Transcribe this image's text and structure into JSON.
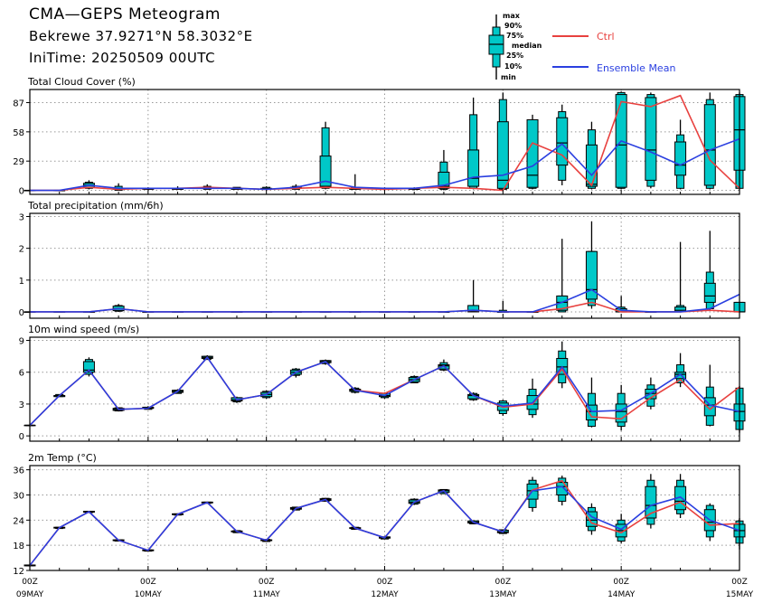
{
  "header": {
    "title": "CMA—GEPS Meteogram",
    "location": "Bekrewe 37.9271°N 58.3032°E",
    "init_time": "IniTime: 20250509 00UTC"
  },
  "legend": {
    "box_labels": [
      "max",
      "90%",
      "75%",
      "median",
      "25%",
      "10%",
      "min"
    ],
    "ctrl_label": "Ctrl",
    "mean_label": "Ensemble Mean",
    "colors": {
      "ctrl": "#e8413f",
      "mean": "#2a3fe0",
      "box": "#00c8c8"
    }
  },
  "x_axis": {
    "tick_labels": [
      {
        "hour": "00Z",
        "date": "09MAY"
      },
      {
        "hour": "00Z",
        "date": "10MAY"
      },
      {
        "hour": "00Z",
        "date": "11MAY"
      },
      {
        "hour": "00Z",
        "date": "12MAY"
      },
      {
        "hour": "00Z",
        "date": "13MAY"
      },
      {
        "hour": "00Z",
        "date": "14MAY"
      },
      {
        "hour": "00Z",
        "date": "15MAY"
      }
    ]
  },
  "chart_data": [
    {
      "type": "box",
      "title": "Total Cloud Cover (%)",
      "ylim": [
        -4,
        100
      ],
      "yticks": [
        0,
        29,
        58,
        87
      ],
      "x_hours": [
        0,
        6,
        12,
        18,
        24,
        30,
        36,
        42,
        48,
        54,
        60,
        66,
        72,
        78,
        84,
        90,
        96,
        102,
        108,
        114,
        120,
        126,
        132,
        138,
        144
      ],
      "ctrl": [
        0,
        0,
        3,
        1,
        2,
        2,
        3,
        2,
        1,
        2,
        3,
        2,
        1,
        2,
        3,
        2,
        0,
        47,
        35,
        5,
        88,
        83,
        94,
        30,
        2
      ],
      "mean": [
        0,
        0,
        5,
        2,
        2,
        2,
        2,
        2,
        1,
        3,
        9,
        3,
        2,
        2,
        5,
        13,
        15,
        24,
        46,
        15,
        49,
        38,
        25,
        40,
        51
      ],
      "boxes": [
        [
          0,
          0,
          0,
          0,
          0,
          0,
          0
        ],
        [
          0,
          0,
          0,
          0,
          0,
          0,
          0
        ],
        [
          1,
          2,
          3,
          5,
          7,
          8,
          10
        ],
        [
          0,
          0,
          1,
          2,
          2,
          4,
          7
        ],
        [
          1,
          1,
          1,
          2,
          2,
          2,
          3
        ],
        [
          1,
          1,
          1,
          2,
          2,
          2,
          4
        ],
        [
          1,
          1,
          2,
          2,
          3,
          4,
          6
        ],
        [
          1,
          1,
          1,
          2,
          2,
          3,
          3
        ],
        [
          0,
          1,
          1,
          1,
          2,
          3,
          4
        ],
        [
          1,
          1,
          2,
          3,
          3,
          4,
          6
        ],
        [
          1,
          2,
          3,
          4,
          34,
          62,
          68
        ],
        [
          1,
          1,
          1,
          2,
          2,
          3,
          16
        ],
        [
          0,
          1,
          1,
          1,
          2,
          2,
          3
        ],
        [
          0,
          1,
          1,
          1,
          2,
          2,
          3
        ],
        [
          0,
          1,
          2,
          4,
          18,
          28,
          40
        ],
        [
          1,
          2,
          4,
          12,
          40,
          75,
          92
        ],
        [
          0,
          1,
          2,
          10,
          68,
          90,
          97
        ],
        [
          1,
          2,
          3,
          15,
          70,
          68,
          75
        ],
        [
          5,
          10,
          25,
          47,
          72,
          78,
          85
        ],
        [
          1,
          2,
          4,
          6,
          45,
          60,
          68
        ],
        [
          1,
          2,
          3,
          45,
          95,
          97,
          98
        ],
        [
          2,
          4,
          10,
          40,
          92,
          95,
          97
        ],
        [
          1,
          2,
          15,
          25,
          48,
          55,
          70
        ],
        [
          1,
          2,
          5,
          40,
          85,
          90,
          97
        ],
        [
          1,
          2,
          20,
          60,
          93,
          95,
          97
        ]
      ]
    },
    {
      "type": "box",
      "title": "Total precipitation (mm/6h)",
      "ylim": [
        -0.2,
        3.1
      ],
      "yticks": [
        0,
        1,
        2,
        3
      ],
      "x_hours": [
        0,
        6,
        12,
        18,
        24,
        30,
        36,
        42,
        48,
        54,
        60,
        66,
        72,
        78,
        84,
        90,
        96,
        102,
        108,
        114,
        120,
        126,
        132,
        138,
        144
      ],
      "ctrl": [
        0,
        0,
        0,
        0.1,
        0,
        0,
        0,
        0,
        0,
        0,
        0,
        0,
        0,
        0,
        0,
        0.05,
        0,
        0,
        0.1,
        0.3,
        0,
        0,
        0,
        0.05,
        0
      ],
      "mean": [
        0,
        0,
        0,
        0.1,
        0,
        0,
        0,
        0,
        0,
        0,
        0,
        0,
        0,
        0,
        0,
        0.05,
        0,
        0,
        0.3,
        0.7,
        0.05,
        0,
        0,
        0.1,
        0.55
      ],
      "boxes": [
        [
          0,
          0,
          0,
          0,
          0,
          0,
          0
        ],
        [
          0,
          0,
          0,
          0,
          0,
          0,
          0
        ],
        [
          0,
          0,
          0,
          0,
          0,
          0,
          0
        ],
        [
          0,
          0.02,
          0.04,
          0.1,
          0.18,
          0.2,
          0.25
        ],
        [
          0,
          0,
          0,
          0,
          0,
          0,
          0
        ],
        [
          0,
          0,
          0,
          0,
          0,
          0,
          0
        ],
        [
          0,
          0,
          0,
          0,
          0,
          0,
          0
        ],
        [
          0,
          0,
          0,
          0,
          0,
          0,
          0
        ],
        [
          0,
          0,
          0,
          0,
          0,
          0,
          0
        ],
        [
          0,
          0,
          0,
          0,
          0,
          0,
          0
        ],
        [
          0,
          0,
          0,
          0,
          0,
          0,
          0
        ],
        [
          0,
          0,
          0,
          0,
          0,
          0,
          0
        ],
        [
          0,
          0,
          0,
          0,
          0,
          0,
          0
        ],
        [
          0,
          0,
          0,
          0,
          0,
          0,
          0
        ],
        [
          0,
          0,
          0,
          0,
          0,
          0,
          0
        ],
        [
          0,
          0,
          0,
          0.01,
          0.2,
          0.2,
          1.0
        ],
        [
          0,
          0,
          0,
          0,
          0,
          0.05,
          0.35
        ],
        [
          0,
          0,
          0,
          0,
          0,
          0,
          0
        ],
        [
          0,
          0,
          0.05,
          0.3,
          0.5,
          0.5,
          2.3
        ],
        [
          0.1,
          0.2,
          0.4,
          0.7,
          1.9,
          1.9,
          2.85
        ],
        [
          0,
          0,
          0,
          0,
          0.1,
          0.15,
          0.5
        ],
        [
          0,
          0,
          0,
          0,
          0,
          0,
          0
        ],
        [
          0,
          0,
          0,
          0.05,
          0.15,
          0.2,
          2.2
        ],
        [
          0.05,
          0.1,
          0.3,
          0.5,
          0.9,
          1.25,
          2.55
        ],
        [
          0,
          0,
          0,
          0,
          0.3,
          0.3,
          0.3
        ]
      ]
    },
    {
      "type": "box",
      "title": "10m wind speed (m/s)",
      "ylim": [
        -0.5,
        9.3
      ],
      "yticks": [
        0,
        3,
        6,
        9
      ],
      "x_hours": [
        0,
        6,
        12,
        18,
        24,
        30,
        36,
        42,
        48,
        54,
        60,
        66,
        72,
        78,
        84,
        90,
        96,
        102,
        108,
        114,
        120,
        126,
        132,
        138,
        144
      ],
      "ctrl": [
        1.0,
        3.8,
        6.2,
        2.5,
        2.6,
        4.2,
        7.4,
        3.4,
        3.9,
        6.0,
        7.0,
        4.3,
        4.0,
        5.3,
        6.6,
        3.8,
        2.7,
        3.0,
        6.3,
        1.8,
        1.6,
        3.6,
        5.3,
        2.5,
        4.6
      ],
      "mean": [
        1.0,
        3.8,
        6.2,
        2.5,
        2.6,
        4.2,
        7.4,
        3.4,
        3.9,
        6.0,
        7.0,
        4.3,
        3.8,
        5.3,
        6.6,
        3.8,
        2.8,
        3.1,
        6.5,
        2.3,
        2.4,
        4.0,
        5.8,
        2.9,
        2.3
      ],
      "boxes": [
        [
          1.0,
          1.0,
          1.0,
          1.0,
          1.0,
          1.0,
          1.0
        ],
        [
          3.7,
          3.7,
          3.7,
          3.8,
          3.8,
          3.9,
          3.9
        ],
        [
          5.6,
          5.8,
          6.0,
          6.2,
          7.0,
          7.2,
          7.4
        ],
        [
          2.3,
          2.35,
          2.4,
          2.5,
          2.6,
          2.65,
          2.7
        ],
        [
          2.5,
          2.5,
          2.6,
          2.6,
          2.7,
          2.7,
          2.8
        ],
        [
          4.0,
          4.0,
          4.1,
          4.2,
          4.3,
          4.3,
          4.4
        ],
        [
          7.2,
          7.2,
          7.3,
          7.4,
          7.5,
          7.5,
          7.6
        ],
        [
          3.1,
          3.2,
          3.3,
          3.4,
          3.6,
          3.6,
          3.7
        ],
        [
          3.5,
          3.6,
          3.7,
          3.9,
          4.1,
          4.2,
          4.3
        ],
        [
          5.5,
          5.7,
          5.8,
          6.0,
          6.2,
          6.3,
          6.4
        ],
        [
          6.7,
          6.8,
          6.9,
          7.0,
          7.1,
          7.1,
          7.2
        ],
        [
          4.0,
          4.1,
          4.2,
          4.3,
          4.4,
          4.5,
          4.6
        ],
        [
          3.5,
          3.6,
          3.7,
          3.8,
          4.0,
          4.0,
          4.1
        ],
        [
          5.0,
          5.0,
          5.1,
          5.3,
          5.5,
          5.6,
          5.7
        ],
        [
          6.1,
          6.2,
          6.3,
          6.6,
          6.7,
          6.9,
          7.2
        ],
        [
          3.3,
          3.4,
          3.5,
          3.8,
          3.9,
          4.0,
          4.1
        ],
        [
          1.9,
          2.1,
          2.4,
          2.8,
          3.1,
          3.3,
          3.4
        ],
        [
          1.7,
          2.0,
          2.5,
          3.0,
          3.8,
          4.4,
          5.4
        ],
        [
          4.5,
          5.0,
          5.8,
          6.5,
          7.3,
          8.0,
          8.9
        ],
        [
          0.8,
          0.9,
          1.5,
          2.3,
          2.9,
          4.0,
          5.5
        ],
        [
          0.5,
          0.9,
          1.3,
          2.3,
          3.0,
          4.0,
          4.8
        ],
        [
          2.5,
          2.8,
          3.5,
          4.0,
          4.4,
          4.8,
          5.5
        ],
        [
          4.6,
          5.0,
          5.4,
          5.8,
          6.0,
          6.7,
          7.8
        ],
        [
          0.9,
          1.0,
          1.9,
          2.9,
          3.6,
          4.6,
          6.7
        ],
        [
          0.3,
          0.6,
          1.4,
          2.3,
          3.0,
          4.5,
          4.7
        ]
      ]
    },
    {
      "type": "box",
      "title": "2m Temp (°C)",
      "ylim": [
        12,
        37
      ],
      "yticks": [
        12,
        18,
        24,
        30,
        36
      ],
      "x_hours": [
        0,
        6,
        12,
        18,
        24,
        30,
        36,
        42,
        48,
        54,
        60,
        66,
        72,
        78,
        84,
        90,
        96,
        102,
        108,
        114,
        120,
        126,
        132,
        138,
        144
      ],
      "ctrl": [
        13.2,
        22.2,
        26.0,
        19.2,
        16.8,
        25.4,
        28.2,
        21.3,
        19.2,
        26.8,
        28.9,
        22.1,
        19.8,
        28.3,
        31.0,
        23.5,
        21.2,
        31.2,
        33.4,
        23.3,
        21.0,
        25.6,
        28.3,
        22.8,
        23.2
      ],
      "mean": [
        13.2,
        22.2,
        26.0,
        19.2,
        16.8,
        25.4,
        28.2,
        21.3,
        19.2,
        26.8,
        28.9,
        22.1,
        19.8,
        28.3,
        31.0,
        23.5,
        21.2,
        31.0,
        32.0,
        24.8,
        21.8,
        27.5,
        29.5,
        24.0,
        21.5
      ],
      "boxes": [
        [
          13.0,
          13.1,
          13.1,
          13.2,
          13.3,
          13.3,
          13.4
        ],
        [
          22.0,
          22.0,
          22.1,
          22.2,
          22.3,
          22.3,
          22.4
        ],
        [
          25.8,
          25.8,
          25.9,
          26.0,
          26.1,
          26.1,
          26.2
        ],
        [
          19.0,
          19.0,
          19.1,
          19.2,
          19.3,
          19.3,
          19.4
        ],
        [
          16.6,
          16.6,
          16.7,
          16.8,
          16.9,
          16.9,
          17.0
        ],
        [
          25.2,
          25.2,
          25.3,
          25.4,
          25.5,
          25.5,
          25.6
        ],
        [
          28.0,
          28.0,
          28.1,
          28.2,
          28.3,
          28.3,
          28.4
        ],
        [
          21.0,
          21.0,
          21.2,
          21.3,
          21.4,
          21.5,
          21.5
        ],
        [
          18.9,
          18.9,
          19.1,
          19.2,
          19.3,
          19.4,
          19.4
        ],
        [
          26.4,
          26.4,
          26.6,
          26.8,
          27.0,
          27.1,
          27.2
        ],
        [
          28.4,
          28.5,
          28.7,
          28.9,
          29.1,
          29.2,
          29.3
        ],
        [
          21.8,
          21.8,
          22.0,
          22.1,
          22.2,
          22.3,
          22.3
        ],
        [
          19.5,
          19.5,
          19.7,
          19.8,
          20.0,
          20.0,
          20.1
        ],
        [
          27.6,
          27.8,
          28.0,
          28.3,
          28.8,
          29.0,
          29.2
        ],
        [
          30.2,
          30.3,
          30.6,
          31.0,
          31.2,
          31.3,
          31.4
        ],
        [
          23.0,
          23.1,
          23.3,
          23.5,
          23.8,
          23.8,
          23.9
        ],
        [
          20.7,
          20.8,
          21.0,
          21.2,
          21.6,
          21.7,
          21.8
        ],
        [
          26.0,
          27.0,
          29.0,
          31.0,
          32.6,
          33.5,
          34.3
        ],
        [
          27.5,
          28.5,
          30.0,
          32.0,
          33.0,
          34.0,
          34.6
        ],
        [
          20.5,
          21.5,
          22.5,
          24.0,
          26.0,
          27.0,
          28.0
        ],
        [
          18.5,
          19.0,
          20.0,
          21.5,
          23.0,
          24.0,
          25.5
        ],
        [
          22.0,
          23.0,
          24.5,
          27.5,
          32.0,
          33.5,
          35.0
        ],
        [
          24.5,
          25.5,
          26.5,
          28.5,
          32.0,
          33.5,
          35.0
        ],
        [
          19.0,
          20.0,
          21.5,
          23.5,
          26.5,
          27.5,
          28.0
        ],
        [
          17.0,
          18.5,
          20.0,
          21.5,
          23.0,
          23.8,
          24.5
        ]
      ]
    }
  ]
}
